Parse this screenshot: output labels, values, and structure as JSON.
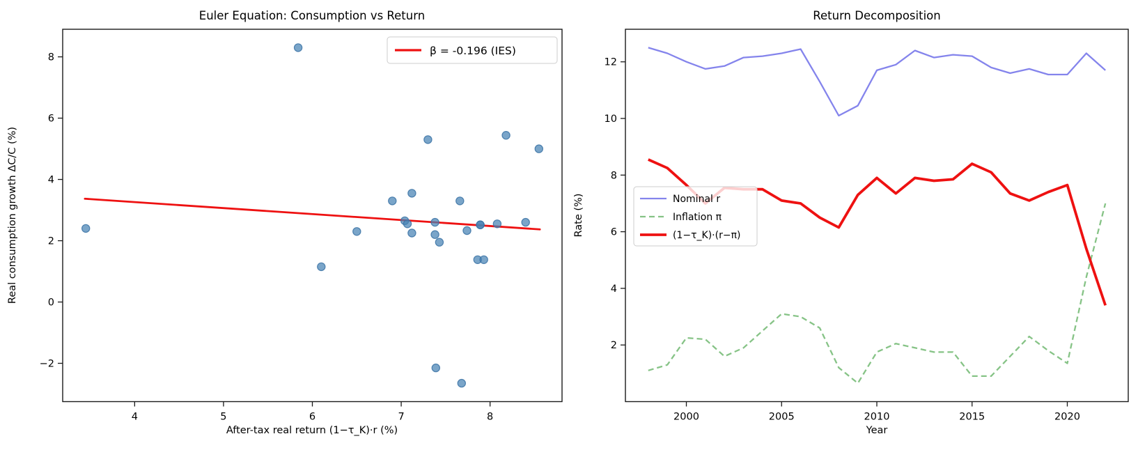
{
  "figure": {
    "background": "#ffffff",
    "spine_color": "#1a1a1a",
    "text_color": "#000000"
  },
  "chart_data": [
    {
      "id": "euler-scatter",
      "type": "scatter",
      "title": "Euler Equation: Consumption vs Return",
      "xlabel": "After-tax real return (1−τ_K)·r (%)",
      "ylabel": "Real consumption growth ΔC/C (%)",
      "xlim": [
        3.19,
        8.81
      ],
      "ylim": [
        -3.25,
        8.9
      ],
      "xtick_values": [
        4,
        5,
        6,
        7,
        8
      ],
      "xtick_labels": [
        "4",
        "5",
        "6",
        "7",
        "8"
      ],
      "ytick_values": [
        -2,
        0,
        2,
        4,
        6,
        8
      ],
      "ytick_labels": [
        "−2",
        "0",
        "2",
        "4",
        "6",
        "8"
      ],
      "grid": false,
      "point_style": {
        "fill": "#4682b4",
        "fill_opacity": 0.72,
        "stroke": "#3a72a4",
        "stroke_opacity": 0.85,
        "radius": 5.6
      },
      "points": [
        [
          3.45,
          2.4
        ],
        [
          5.84,
          8.3
        ],
        [
          6.1,
          1.15
        ],
        [
          6.5,
          2.3
        ],
        [
          6.9,
          3.3
        ],
        [
          7.04,
          2.65
        ],
        [
          7.07,
          2.55
        ],
        [
          7.12,
          3.55
        ],
        [
          7.12,
          2.25
        ],
        [
          7.3,
          5.3
        ],
        [
          7.38,
          2.6
        ],
        [
          7.38,
          2.2
        ],
        [
          7.43,
          1.95
        ],
        [
          7.39,
          -2.15
        ],
        [
          7.66,
          3.3
        ],
        [
          7.68,
          -2.65
        ],
        [
          7.74,
          2.33
        ],
        [
          7.86,
          1.38
        ],
        [
          7.89,
          2.52
        ],
        [
          7.89,
          2.52
        ],
        [
          7.93,
          1.38
        ],
        [
          8.08,
          2.55
        ],
        [
          8.18,
          5.44
        ],
        [
          8.4,
          2.6
        ],
        [
          8.55,
          5.0
        ]
      ],
      "regression": {
        "x1": 3.44,
        "y1": 3.37,
        "x2": 8.56,
        "y2": 2.37,
        "color": "#ee1111",
        "width": 2.8,
        "label": "β = -0.196 (IES)"
      },
      "legend_position": "top-right"
    },
    {
      "id": "return-decomposition",
      "type": "line",
      "title": "Return Decomposition",
      "xlabel": "Year",
      "ylabel": "Rate (%)",
      "xlim": [
        1996.8,
        2023.2
      ],
      "ylim": [
        0,
        13.15
      ],
      "xtick_values": [
        2000,
        2005,
        2010,
        2015,
        2020
      ],
      "xtick_labels": [
        "2000",
        "2005",
        "2010",
        "2015",
        "2020"
      ],
      "ytick_values": [
        2,
        4,
        6,
        8,
        10,
        12
      ],
      "ytick_labels": [
        "2",
        "4",
        "6",
        "8",
        "10",
        "12"
      ],
      "grid": false,
      "x": [
        1998,
        1999,
        2000,
        2001,
        2002,
        2003,
        2004,
        2005,
        2006,
        2007,
        2008,
        2009,
        2010,
        2011,
        2012,
        2013,
        2014,
        2015,
        2016,
        2017,
        2018,
        2019,
        2020,
        2021,
        2022
      ],
      "series": [
        {
          "name": "Nominal r",
          "color": "#8484ec",
          "width": 2.3,
          "dash": null,
          "values": [
            12.5,
            12.3,
            12.0,
            11.75,
            11.85,
            12.15,
            12.2,
            12.3,
            12.45,
            11.3,
            10.1,
            10.45,
            11.7,
            11.9,
            12.4,
            12.15,
            12.25,
            12.2,
            11.8,
            11.6,
            11.75,
            11.55,
            11.55,
            12.3,
            11.7
          ]
        },
        {
          "name": "Inflation π",
          "color": "#86c386",
          "width": 2.3,
          "dash": "8,5",
          "values": [
            1.1,
            1.3,
            2.25,
            2.2,
            1.6,
            1.9,
            2.5,
            3.1,
            3.0,
            2.6,
            1.2,
            0.65,
            1.75,
            2.05,
            1.9,
            1.75,
            1.75,
            0.9,
            0.9,
            1.6,
            2.3,
            1.8,
            1.35,
            4.4,
            7.0
          ]
        },
        {
          "name": "(1−τ_K)·(r−π)",
          "color": "#ee1111",
          "width": 3.8,
          "dash": null,
          "values": [
            8.55,
            8.25,
            7.65,
            7.0,
            7.55,
            7.5,
            7.5,
            7.1,
            7.0,
            6.5,
            6.15,
            7.3,
            7.9,
            7.35,
            7.9,
            7.8,
            7.85,
            8.4,
            8.1,
            7.35,
            7.1,
            7.4,
            7.65,
            5.4,
            3.4
          ]
        }
      ],
      "legend_position": "center-left"
    }
  ]
}
